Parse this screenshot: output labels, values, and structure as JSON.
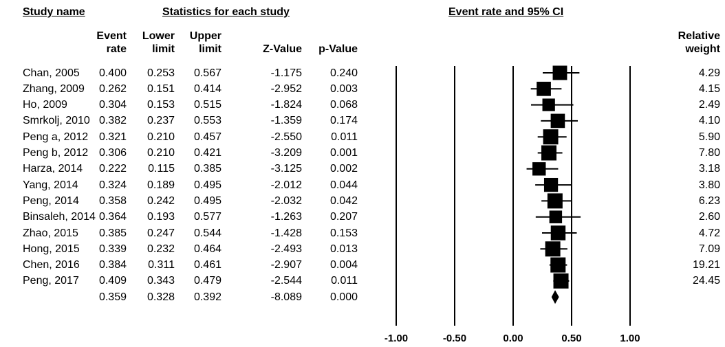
{
  "headers": {
    "study_name": "Study name",
    "statistics": "Statistics for each study",
    "plot_title": "Event rate and 95% CI",
    "event_rate": [
      "Event",
      "rate"
    ],
    "lower_limit": [
      "Lower",
      "limit"
    ],
    "upper_limit": [
      "Upper",
      "limit"
    ],
    "z_value": "Z-Value",
    "p_value": "p-Value",
    "relative_weight": [
      "Relative",
      "weight"
    ]
  },
  "chart_data": {
    "type": "forest",
    "title": "Event rate and 95% CI",
    "x_ticks": [
      "-1.00",
      "-0.50",
      "0.00",
      "0.50",
      "1.00"
    ],
    "x_tick_values": [
      -1.0,
      -0.5,
      0.0,
      0.5,
      1.0
    ],
    "xlim": [
      -1.0,
      1.0
    ],
    "studies": [
      {
        "name": "Chan, 2005",
        "rate": "0.400",
        "lower": "0.253",
        "upper": "0.567",
        "z": "-1.175",
        "p": "0.240",
        "weight": "4.29"
      },
      {
        "name": "Zhang, 2009",
        "rate": "0.262",
        "lower": "0.151",
        "upper": "0.414",
        "z": "-2.952",
        "p": "0.003",
        "weight": "4.15"
      },
      {
        "name": "Ho, 2009",
        "rate": "0.304",
        "lower": "0.153",
        "upper": "0.515",
        "z": "-1.824",
        "p": "0.068",
        "weight": "2.49"
      },
      {
        "name": "Smrkolj, 2010",
        "rate": "0.382",
        "lower": "0.237",
        "upper": "0.553",
        "z": "-1.359",
        "p": "0.174",
        "weight": "4.10"
      },
      {
        "name": "Peng a, 2012",
        "rate": "0.321",
        "lower": "0.210",
        "upper": "0.457",
        "z": "-2.550",
        "p": "0.011",
        "weight": "5.90"
      },
      {
        "name": "Peng b, 2012",
        "rate": "0.306",
        "lower": "0.210",
        "upper": "0.421",
        "z": "-3.209",
        "p": "0.001",
        "weight": "7.80"
      },
      {
        "name": "Harza, 2014",
        "rate": "0.222",
        "lower": "0.115",
        "upper": "0.385",
        "z": "-3.125",
        "p": "0.002",
        "weight": "3.18"
      },
      {
        "name": "Yang, 2014",
        "rate": "0.324",
        "lower": "0.189",
        "upper": "0.495",
        "z": "-2.012",
        "p": "0.044",
        "weight": "3.80"
      },
      {
        "name": "Peng, 2014",
        "rate": "0.358",
        "lower": "0.242",
        "upper": "0.495",
        "z": "-2.032",
        "p": "0.042",
        "weight": "6.23"
      },
      {
        "name": "Binsaleh, 2014",
        "rate": "0.364",
        "lower": "0.193",
        "upper": "0.577",
        "z": "-1.263",
        "p": "0.207",
        "weight": "2.60"
      },
      {
        "name": "Zhao, 2015",
        "rate": "0.385",
        "lower": "0.247",
        "upper": "0.544",
        "z": "-1.428",
        "p": "0.153",
        "weight": "4.72"
      },
      {
        "name": "Hong, 2015",
        "rate": "0.339",
        "lower": "0.232",
        "upper": "0.464",
        "z": "-2.493",
        "p": "0.013",
        "weight": "7.09"
      },
      {
        "name": "Chen, 2016",
        "rate": "0.384",
        "lower": "0.311",
        "upper": "0.461",
        "z": "-2.907",
        "p": "0.004",
        "weight": "19.21"
      },
      {
        "name": "Peng, 2017",
        "rate": "0.409",
        "lower": "0.343",
        "upper": "0.479",
        "z": "-2.544",
        "p": "0.011",
        "weight": "24.45"
      }
    ],
    "summary": {
      "rate": "0.359",
      "lower": "0.328",
      "upper": "0.392",
      "z": "-8.089",
      "p": "0.000"
    }
  }
}
